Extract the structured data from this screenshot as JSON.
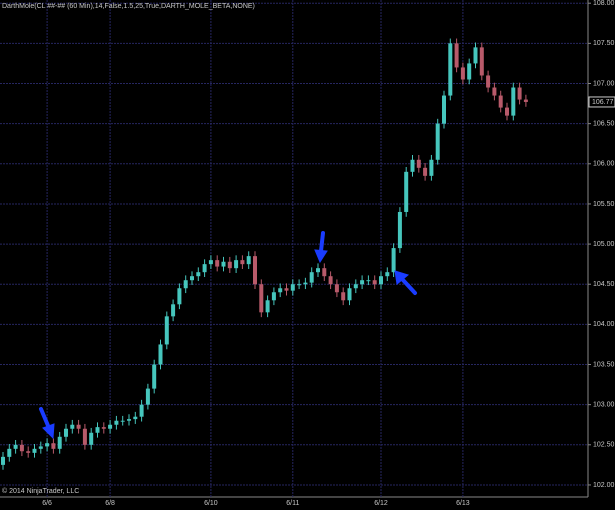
{
  "chart_data": {
    "type": "candlestick",
    "title": "DarthMole(CL ##-## (60 Min),14,False,1.5,25,True,DARTH_MOLE_BETA,NONE)",
    "footer": "© 2014 NinjaTrader, LLC",
    "categories": [
      null,
      null,
      null,
      null,
      null,
      null,
      null,
      "6/6",
      null,
      null,
      null,
      null,
      null,
      null,
      null,
      null,
      null,
      "6/8",
      null,
      null,
      null,
      null,
      null,
      null,
      null,
      null,
      null,
      null,
      null,
      null,
      null,
      null,
      null,
      "6/10",
      null,
      null,
      null,
      null,
      null,
      null,
      null,
      null,
      null,
      null,
      null,
      null,
      "6/11",
      null,
      null,
      null,
      null,
      null,
      null,
      null,
      null,
      null,
      null,
      null,
      null,
      null,
      "6/12",
      null,
      null,
      null,
      null,
      null,
      null,
      null,
      null,
      null,
      null,
      null,
      null,
      "6/13",
      null,
      null,
      null,
      null,
      null,
      null,
      null,
      null,
      null,
      null
    ],
    "open": [
      102.25,
      102.35,
      102.45,
      102.5,
      102.42,
      102.4,
      102.45,
      102.48,
      102.52,
      102.45,
      102.6,
      102.7,
      102.75,
      102.7,
      102.5,
      102.65,
      102.72,
      102.7,
      102.75,
      102.8,
      102.8,
      102.82,
      102.85,
      103.0,
      103.2,
      103.5,
      103.75,
      104.1,
      104.25,
      104.45,
      104.55,
      104.6,
      104.65,
      104.75,
      104.8,
      104.72,
      104.78,
      104.7,
      104.8,
      104.75,
      104.85,
      104.5,
      104.15,
      104.3,
      104.4,
      104.45,
      104.42,
      104.5,
      104.5,
      104.52,
      104.65,
      104.7,
      104.6,
      104.5,
      104.4,
      104.3,
      104.45,
      104.5,
      104.55,
      104.55,
      104.5,
      104.6,
      104.65,
      104.95,
      105.4,
      105.9,
      106.05,
      105.95,
      105.85,
      106.05,
      106.5,
      106.85,
      107.5,
      107.2,
      107.05,
      107.25,
      107.45,
      107.1,
      106.95,
      106.85,
      106.7,
      106.6,
      106.95,
      106.8
    ],
    "high": [
      102.41,
      102.51,
      102.56,
      102.56,
      102.48,
      102.51,
      102.54,
      102.58,
      102.58,
      102.66,
      102.76,
      102.81,
      102.81,
      102.76,
      102.71,
      102.78,
      102.78,
      102.81,
      102.86,
      102.86,
      102.88,
      102.91,
      103.06,
      103.26,
      103.56,
      103.81,
      104.16,
      104.31,
      104.51,
      104.61,
      104.66,
      104.71,
      104.81,
      104.86,
      104.86,
      104.84,
      104.84,
      104.86,
      104.86,
      104.91,
      104.91,
      104.56,
      104.36,
      104.46,
      104.51,
      104.51,
      104.56,
      104.56,
      104.58,
      104.71,
      104.76,
      104.76,
      104.66,
      104.56,
      104.46,
      104.51,
      104.56,
      104.61,
      104.61,
      104.61,
      104.66,
      104.71,
      105.01,
      105.46,
      105.96,
      106.11,
      106.11,
      106.01,
      106.11,
      106.56,
      106.91,
      107.56,
      107.56,
      107.26,
      107.31,
      107.51,
      107.51,
      107.16,
      107.01,
      106.91,
      106.76,
      107.01,
      107.01,
      106.86
    ],
    "low": [
      102.19,
      102.29,
      102.39,
      102.36,
      102.34,
      102.34,
      102.39,
      102.42,
      102.39,
      102.39,
      102.54,
      102.64,
      102.64,
      102.44,
      102.44,
      102.59,
      102.64,
      102.64,
      102.69,
      102.74,
      102.74,
      102.76,
      102.79,
      102.94,
      103.14,
      103.44,
      103.69,
      104.04,
      104.19,
      104.39,
      104.49,
      104.54,
      104.59,
      104.69,
      104.66,
      104.66,
      104.64,
      104.64,
      104.69,
      104.69,
      104.44,
      104.09,
      104.09,
      104.24,
      104.34,
      104.36,
      104.36,
      104.44,
      104.44,
      104.46,
      104.59,
      104.54,
      104.44,
      104.34,
      104.24,
      104.24,
      104.39,
      104.44,
      104.49,
      104.44,
      104.44,
      104.54,
      104.59,
      104.89,
      105.34,
      105.84,
      105.89,
      105.79,
      105.79,
      105.99,
      106.44,
      106.79,
      107.14,
      106.99,
      106.99,
      107.19,
      107.04,
      106.89,
      106.79,
      106.64,
      106.54,
      106.54,
      106.74,
      106.71
    ],
    "close": [
      102.35,
      102.45,
      102.5,
      102.42,
      102.4,
      102.45,
      102.48,
      102.52,
      102.45,
      102.6,
      102.7,
      102.75,
      102.7,
      102.5,
      102.65,
      102.72,
      102.7,
      102.75,
      102.8,
      102.8,
      102.82,
      102.85,
      103.0,
      103.2,
      103.5,
      103.75,
      104.1,
      104.25,
      104.45,
      104.55,
      104.6,
      104.65,
      104.75,
      104.8,
      104.72,
      104.78,
      104.7,
      104.8,
      104.75,
      104.85,
      104.5,
      104.15,
      104.3,
      104.4,
      104.45,
      104.42,
      104.5,
      104.5,
      104.52,
      104.65,
      104.7,
      104.6,
      104.5,
      104.4,
      104.3,
      104.45,
      104.5,
      104.55,
      104.55,
      104.5,
      104.6,
      104.65,
      104.95,
      105.4,
      105.9,
      106.05,
      105.95,
      105.85,
      106.05,
      106.5,
      106.85,
      107.5,
      107.2,
      107.05,
      107.25,
      107.45,
      107.1,
      106.95,
      106.85,
      106.7,
      106.6,
      106.95,
      106.8,
      106.77
    ],
    "up_color": "#46c6bd",
    "down_color": "#b85a6a",
    "ylim": [
      101.85,
      108.04
    ],
    "yticks": [
      {
        "value": 102,
        "label": "102.00"
      },
      {
        "value": 102.5,
        "label": "102.50"
      },
      {
        "value": 103,
        "label": "103.00"
      },
      {
        "value": 103.5,
        "label": "103.50"
      },
      {
        "value": 104,
        "label": "104.00"
      },
      {
        "value": 104.5,
        "label": "104.50"
      },
      {
        "value": 105,
        "label": "105.00"
      },
      {
        "value": 105.5,
        "label": "105.50"
      },
      {
        "value": 106,
        "label": "106.00"
      },
      {
        "value": 106.5,
        "label": "106.50"
      },
      {
        "value": 107,
        "label": "107.00"
      },
      {
        "value": 107.5,
        "label": "107.50"
      },
      {
        "value": 108,
        "label": "108.00"
      }
    ],
    "grid": true
  }
}
